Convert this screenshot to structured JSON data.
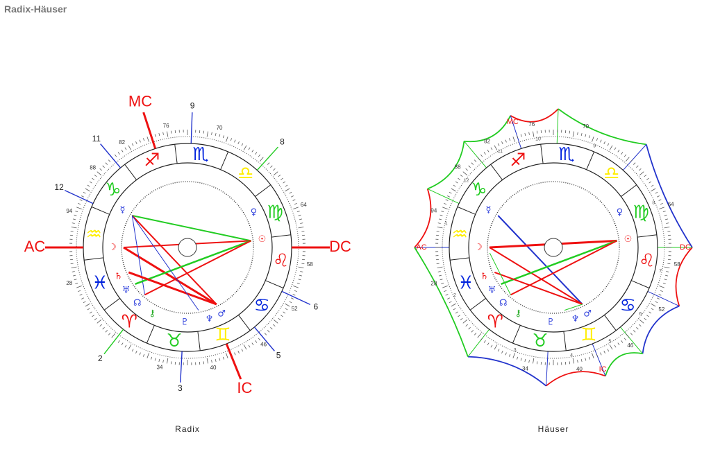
{
  "header": {
    "title": "Radix-Häuser"
  },
  "wheels": [
    {
      "caption": "Radix",
      "signs": [
        {
          "glyph": "♒",
          "color": "#ffee00"
        },
        {
          "glyph": "♓",
          "color": "#0022dd"
        },
        {
          "glyph": "♈",
          "color": "#ee1111"
        },
        {
          "glyph": "♉",
          "color": "#22cc22"
        },
        {
          "glyph": "♊",
          "color": "#ffee00"
        },
        {
          "glyph": "♋",
          "color": "#0022dd"
        },
        {
          "glyph": "♌",
          "color": "#ee1111"
        },
        {
          "glyph": "♍",
          "color": "#22cc22"
        },
        {
          "glyph": "♎",
          "color": "#ffee00"
        },
        {
          "glyph": "♏",
          "color": "#0022dd"
        },
        {
          "glyph": "♐",
          "color": "#ee1111"
        },
        {
          "glyph": "♑",
          "color": "#22cc22"
        }
      ],
      "planets": [
        {
          "glyph": "☿",
          "color": "#3344dd"
        },
        {
          "glyph": "☽",
          "color": "#ee1111"
        },
        {
          "glyph": "♄",
          "color": "#ee1111"
        },
        {
          "glyph": "♅",
          "color": "#3344dd"
        },
        {
          "glyph": "☊",
          "color": "#3344dd"
        },
        {
          "glyph": "⚷",
          "color": "#22aa22"
        },
        {
          "glyph": "♇",
          "color": "#3344dd"
        },
        {
          "glyph": "♆",
          "color": "#3344dd"
        },
        {
          "glyph": "♂",
          "color": "#3344dd"
        },
        {
          "glyph": "♀",
          "color": "#3344dd"
        },
        {
          "glyph": "☉",
          "color": "#ee1111"
        }
      ],
      "angles": [
        "AC",
        "MC",
        "DC",
        "IC"
      ],
      "houses": [
        "11",
        "12",
        "2",
        "3",
        "5",
        "6",
        "8",
        "9"
      ],
      "degree_labels": [
        "76",
        "70",
        "82",
        "88",
        "94",
        "64",
        "58",
        "52",
        "46",
        "40",
        "34",
        "28"
      ]
    },
    {
      "caption": "Häuser",
      "signs": [
        {
          "glyph": "♒",
          "color": "#ffee00"
        },
        {
          "glyph": "♓",
          "color": "#0022dd"
        },
        {
          "glyph": "♈",
          "color": "#ee1111"
        },
        {
          "glyph": "♉",
          "color": "#22cc22"
        },
        {
          "glyph": "♊",
          "color": "#ffee00"
        },
        {
          "glyph": "♋",
          "color": "#0022dd"
        },
        {
          "glyph": "♌",
          "color": "#ee1111"
        },
        {
          "glyph": "♍",
          "color": "#22cc22"
        },
        {
          "glyph": "♎",
          "color": "#ffee00"
        },
        {
          "glyph": "♏",
          "color": "#0022dd"
        },
        {
          "glyph": "♐",
          "color": "#ee1111"
        },
        {
          "glyph": "♑",
          "color": "#22cc22"
        }
      ],
      "planets": [
        {
          "glyph": "☿",
          "color": "#3344dd"
        },
        {
          "glyph": "☽",
          "color": "#ee1111"
        },
        {
          "glyph": "♄",
          "color": "#ee1111"
        },
        {
          "glyph": "♅",
          "color": "#3344dd"
        },
        {
          "glyph": "☊",
          "color": "#3344dd"
        },
        {
          "glyph": "⚷",
          "color": "#22aa22"
        },
        {
          "glyph": "♇",
          "color": "#3344dd"
        },
        {
          "glyph": "♆",
          "color": "#3344dd"
        },
        {
          "glyph": "♂",
          "color": "#3344dd"
        },
        {
          "glyph": "♀",
          "color": "#3344dd"
        },
        {
          "glyph": "☉",
          "color": "#ee1111"
        }
      ],
      "angles": [
        "AC",
        "MC",
        "DC",
        "IC"
      ],
      "houses": [
        "1",
        "12",
        "11",
        "10",
        "9",
        "8",
        "7",
        "6",
        "5",
        "4",
        "3",
        "2"
      ],
      "degree_labels": [
        "76",
        "70",
        "82",
        "88",
        "94",
        "64",
        "58",
        "52",
        "46",
        "40",
        "34",
        "28"
      ]
    }
  ]
}
